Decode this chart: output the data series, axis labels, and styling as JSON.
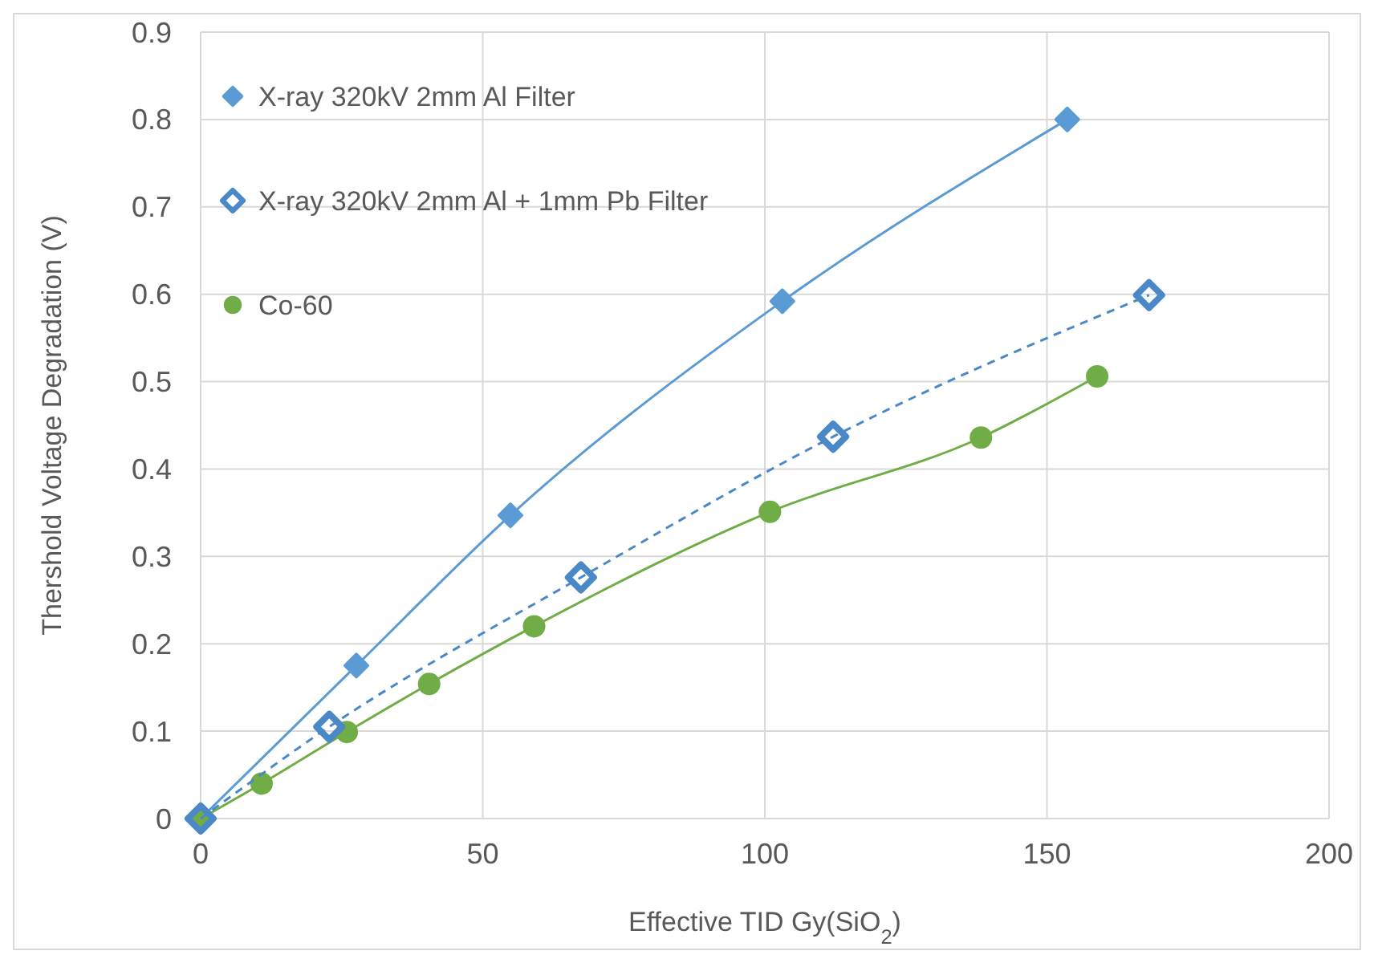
{
  "chart_data": {
    "type": "line",
    "xlabel": "Effective TID Gy(SiO$_{2}$)",
    "ylabel": "Thershold Voltage Degradation (V)",
    "xlim": [
      0,
      200
    ],
    "xticks": [
      0,
      50,
      100,
      150,
      200
    ],
    "ylim": [
      0,
      0.9
    ],
    "yticks": [
      0,
      0.1,
      0.2,
      0.3,
      0.4,
      0.5,
      0.6,
      0.7,
      0.8,
      0.9
    ],
    "grid": true,
    "legend": "top left",
    "series": [
      {
        "name": "X-ray 320kV 2mm Al Filter",
        "color": "#5b9bd5",
        "marker": "diamond",
        "line_style": "solid",
        "x": [
          0,
          27.6,
          54.9,
          103.1,
          153.6
        ],
        "values": [
          0,
          0.175,
          0.347,
          0.592,
          0.8
        ]
      },
      {
        "name": "X-ray 320kV 2mm Al + 1mm Pb Filter",
        "color": "#4a88c8",
        "marker": "diamond-open",
        "line_style": "dashed",
        "x": [
          0,
          22.8,
          67.4,
          112.1,
          168.1
        ],
        "values": [
          0,
          0.105,
          0.276,
          0.437,
          0.599
        ]
      },
      {
        "name": "Co-60",
        "color": "#70ad47",
        "marker": "circle",
        "line_style": "solid",
        "x": [
          0,
          10.8,
          25.9,
          40.5,
          59.1,
          100.9,
          138.3,
          158.9
        ],
        "values": [
          0,
          0.04,
          0.099,
          0.154,
          0.22,
          0.351,
          0.436,
          0.506
        ]
      }
    ]
  }
}
